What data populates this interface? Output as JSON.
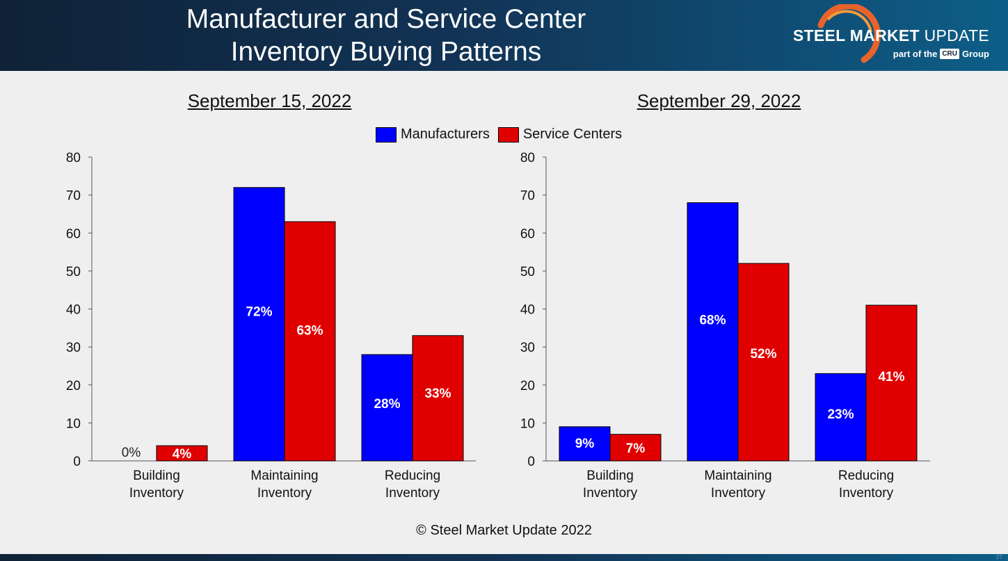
{
  "header": {
    "title_line1": "Manufacturer and Service Center",
    "title_line2": "Inventory Buying Patterns",
    "logo_bold": "STEEL MARKET",
    "logo_light": "UPDATE",
    "logo_sub_prefix": "part of the",
    "logo_sub_box": "CRU",
    "logo_sub_suffix": "Group"
  },
  "legend": {
    "items": [
      {
        "label": "Manufacturers",
        "color": "#0000ff"
      },
      {
        "label": "Service Centers",
        "color": "#e00000"
      }
    ]
  },
  "chart_data": [
    {
      "type": "bar",
      "title": "September 15, 2022",
      "categories": [
        "Building Inventory",
        "Maintaining Inventory",
        "Reducing Inventory"
      ],
      "category_lines": [
        [
          "Building",
          "Inventory"
        ],
        [
          "Maintaining",
          "Inventory"
        ],
        [
          "Reducing",
          "Inventory"
        ]
      ],
      "series": [
        {
          "name": "Manufacturers",
          "color": "#0000ff",
          "values": [
            0,
            72,
            28
          ],
          "labels": [
            "0%",
            "72%",
            "28%"
          ]
        },
        {
          "name": "Service Centers",
          "color": "#e00000",
          "values": [
            4,
            63,
            33
          ],
          "labels": [
            "4%",
            "63%",
            "33%"
          ]
        }
      ],
      "ylim": [
        0,
        80
      ],
      "yticks": [
        0,
        10,
        20,
        30,
        40,
        50,
        60,
        70,
        80
      ],
      "xlabel": "",
      "ylabel": ""
    },
    {
      "type": "bar",
      "title": "September 29, 2022",
      "categories": [
        "Building Inventory",
        "Maintaining Inventory",
        "Reducing Inventory"
      ],
      "category_lines": [
        [
          "Building",
          "Inventory"
        ],
        [
          "Maintaining",
          "Inventory"
        ],
        [
          "Reducing",
          "Inventory"
        ]
      ],
      "series": [
        {
          "name": "Manufacturers",
          "color": "#0000ff",
          "values": [
            9,
            68,
            23
          ],
          "labels": [
            "9%",
            "68%",
            "23%"
          ]
        },
        {
          "name": "Service Centers",
          "color": "#e00000",
          "values": [
            7,
            52,
            41
          ],
          "labels": [
            "7%",
            "52%",
            "41%"
          ]
        }
      ],
      "ylim": [
        0,
        80
      ],
      "yticks": [
        0,
        10,
        20,
        30,
        40,
        50,
        60,
        70,
        80
      ],
      "xlabel": "",
      "ylabel": ""
    }
  ],
  "footer": {
    "copyright": "© Steel Market Update 2022",
    "page_number": "27"
  }
}
